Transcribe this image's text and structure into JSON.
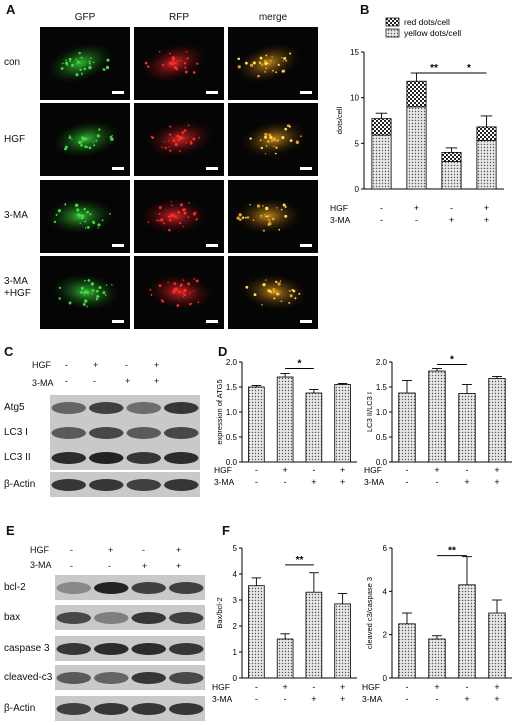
{
  "panelA": {
    "label": "A",
    "columns": [
      "GFP",
      "RFP",
      "merge"
    ],
    "rows": [
      "con",
      "HGF",
      "3-MA",
      "3-MA\n+HGF"
    ]
  },
  "panelB": {
    "label": "B",
    "treat_labels": [
      "HGF",
      "3-MA"
    ],
    "HGF_signs": [
      "-",
      "+",
      "-",
      "+"
    ],
    "MA_signs": [
      "-",
      "-",
      "+",
      "+"
    ],
    "sig": [
      "**",
      "*"
    ]
  },
  "panelC": {
    "label": "C",
    "treat_labels": [
      "HGF",
      "3-MA"
    ],
    "HGF_signs": [
      "-",
      "+",
      "-",
      "+"
    ],
    "MA_signs": [
      "-",
      "-",
      "+",
      "+"
    ],
    "bands": [
      "Atg5",
      "LC3 I",
      "LC3 II",
      "β-Actin"
    ]
  },
  "panelD": {
    "label": "D",
    "treat_labels": [
      "HGF",
      "3-MA"
    ],
    "HGF_signs": [
      "-",
      "+",
      "-",
      "+"
    ],
    "MA_signs": [
      "-",
      "-",
      "+",
      "+"
    ],
    "sig": [
      "*",
      "*"
    ]
  },
  "panelE": {
    "label": "E",
    "treat_labels": [
      "HGF",
      "3-MA"
    ],
    "HGF_signs": [
      "-",
      "+",
      "-",
      "+"
    ],
    "MA_signs": [
      "-",
      "-",
      "+",
      "+"
    ],
    "bands": [
      "bcl-2",
      "bax",
      "caspase 3",
      "cleaved-c3",
      "β-Actin"
    ]
  },
  "panelF": {
    "label": "F",
    "treat_labels": [
      "HGF",
      "3-MA"
    ],
    "HGF_signs": [
      "-",
      "+",
      "-",
      "+"
    ],
    "MA_signs": [
      "-",
      "-",
      "+",
      "+"
    ],
    "sig": [
      "**",
      "**"
    ]
  },
  "chart_data": [
    {
      "type": "bar",
      "panel": "B",
      "stacked": true,
      "ylabel": "dots/cell",
      "ylim": [
        0,
        15
      ],
      "yticks": [
        0,
        5,
        10,
        15
      ],
      "series": [
        {
          "name": "red dots/cell",
          "values": [
            1.8,
            2.8,
            1.0,
            1.5
          ]
        },
        {
          "name": "yellow dots/cell",
          "values": [
            5.9,
            9.0,
            3.0,
            5.3
          ]
        }
      ],
      "errors": [
        0.6,
        0.9,
        0.5,
        1.2
      ],
      "legend_position": "top-right"
    },
    {
      "type": "bar",
      "panel": "D-left",
      "ylabel": "expression of ATG5",
      "ylim": [
        0,
        2.0
      ],
      "yticks": [
        "0.0",
        "0.5",
        "1.0",
        "1.5",
        "2.0"
      ],
      "values": [
        1.5,
        1.7,
        1.38,
        1.55
      ],
      "errors": [
        0.03,
        0.07,
        0.07,
        0.02
      ]
    },
    {
      "type": "bar",
      "panel": "D-right",
      "ylabel": "LC3 II/LC3 I",
      "ylim": [
        0,
        2.0
      ],
      "yticks": [
        "0.0",
        "0.5",
        "1.0",
        "1.5",
        "2.0"
      ],
      "values": [
        1.38,
        1.82,
        1.37,
        1.67
      ],
      "errors": [
        0.25,
        0.05,
        0.18,
        0.04
      ]
    },
    {
      "type": "bar",
      "panel": "F-left",
      "ylabel": "Bax/bcl-2",
      "ylim": [
        0,
        5
      ],
      "yticks": [
        0,
        1,
        2,
        3,
        4,
        5
      ],
      "values": [
        3.55,
        1.5,
        3.3,
        2.85
      ],
      "errors": [
        0.3,
        0.2,
        0.75,
        0.4
      ]
    },
    {
      "type": "bar",
      "panel": "F-right",
      "ylabel": "cleaved c3/caspase 3",
      "ylim": [
        0,
        6
      ],
      "yticks": [
        0,
        2,
        4,
        6
      ],
      "values": [
        2.5,
        1.8,
        4.3,
        3.0
      ],
      "errors": [
        0.5,
        0.15,
        1.3,
        0.6
      ]
    }
  ]
}
